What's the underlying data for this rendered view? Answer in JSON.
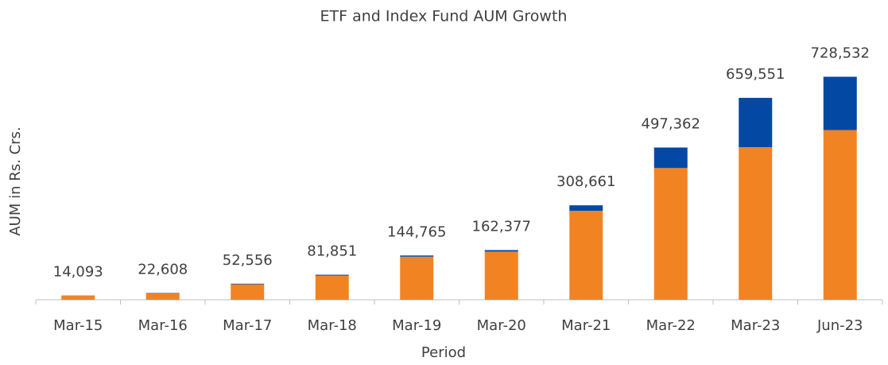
{
  "chart_data": {
    "type": "stacked_bar",
    "title": "ETF and Index Fund AUM Growth",
    "x_label": "Period",
    "y_label": "AUM in Rs. Crs.",
    "categories": [
      "Mar-15",
      "Mar-16",
      "Mar-17",
      "Mar-18",
      "Mar-19",
      "Mar-20",
      "Mar-21",
      "Mar-22",
      "Mar-23",
      "Jun-23"
    ],
    "series": [
      {
        "color": "#f28322",
        "values": [
          13593,
          21608,
          50556,
          78851,
          140765,
          157377,
          290661,
          430362,
          498551,
          554532
        ]
      },
      {
        "color": "#0349a4",
        "values": [
          500,
          1000,
          2000,
          3000,
          4000,
          5000,
          18000,
          67000,
          161000,
          174000
        ]
      }
    ],
    "totals": [
      14093,
      22608,
      52556,
      81851,
      144765,
      162377,
      308661,
      497362,
      659551,
      728532
    ],
    "total_labels": [
      "14,093",
      "22,608",
      "52,556",
      "81,851",
      "144,765",
      "162,377",
      "308,661",
      "497,362",
      "659,551",
      "728,532"
    ],
    "ylim": [
      0,
      800000
    ]
  }
}
